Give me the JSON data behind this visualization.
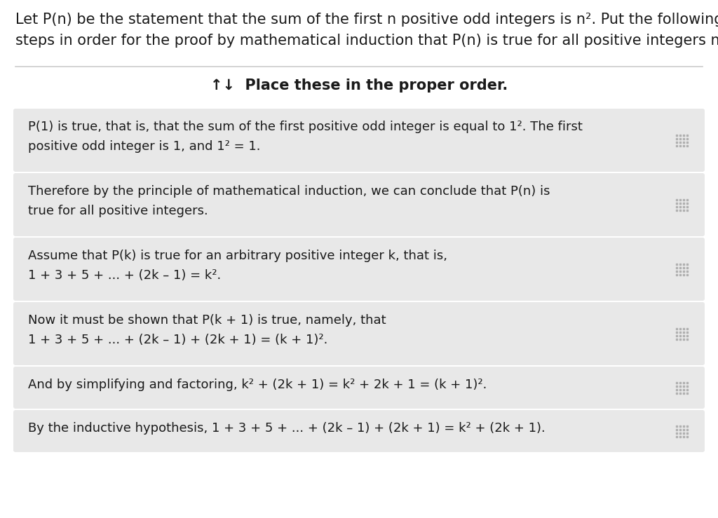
{
  "bg_color": "#ffffff",
  "header_line1": "Let P(n) be the statement that the sum of the first n positive odd integers is n². Put the following",
  "header_line2": "steps in order for the proof by mathematical induction that P(n) is true for all positive integers n.",
  "instruction_text": "↑↓  Place these in the proper order.",
  "card_bg": "#e8e8e8",
  "cards": [
    {
      "lines": [
        "P(1) is true, that is, that the sum of the first positive odd integer is equal to 1². The first",
        "positive odd integer is 1, and 1² = 1."
      ]
    },
    {
      "lines": [
        "Therefore by the principle of mathematical induction, we can conclude that P(n) is",
        "true for all positive integers."
      ]
    },
    {
      "lines": [
        "Assume that P(k) is true for an arbitrary positive integer k, that is,",
        "1 + 3 + 5 + ... + (2k – 1) = k²."
      ]
    },
    {
      "lines": [
        "Now it must be shown that P(k + 1) is true, namely, that",
        "1 + 3 + 5 + ... + (2k – 1) + (2k + 1) = (k + 1)²."
      ]
    },
    {
      "lines": [
        "And by simplifying and factoring, k² + (2k + 1) = k² + 2k + 1 = (k + 1)²."
      ]
    },
    {
      "lines": [
        "By the inductive hypothesis, 1 + 3 + 5 + ... + (2k – 1) + (2k + 1) = k² + (2k + 1)."
      ]
    }
  ],
  "text_color": "#1a1a1a",
  "separator_color": "#cccccc",
  "grid_icon_color": "#b0b0b0",
  "header_fontsize": 15,
  "card_fontsize": 13,
  "instruction_fontsize": 15
}
